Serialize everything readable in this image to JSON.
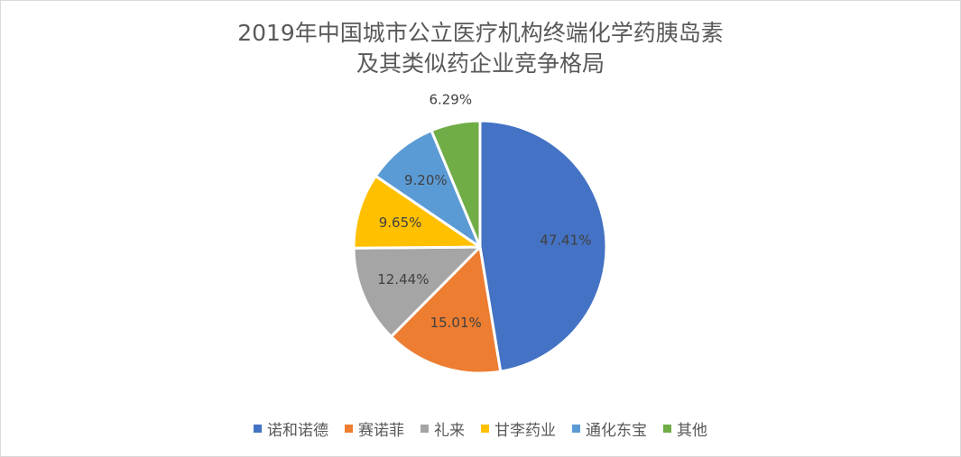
{
  "chart_data": {
    "type": "pie",
    "title_lines": [
      "2019年中国城市公立医疗机构终端化学药胰岛素",
      "及其类似药企业竞争格局"
    ],
    "categories": [
      "诺和诺德",
      "赛诺菲",
      "礼来",
      "甘李药业",
      "通化东宝",
      "其他"
    ],
    "values": [
      47.41,
      15.01,
      12.44,
      9.65,
      9.2,
      6.29
    ],
    "labels": [
      "47.41%",
      "15.01%",
      "12.44%",
      "9.65%",
      "9.20%",
      "6.29%"
    ],
    "colors": [
      "#4472C4",
      "#ED7D31",
      "#A5A5A5",
      "#FFC000",
      "#5B9BD5",
      "#70AD47"
    ],
    "legend_position": "bottom"
  }
}
